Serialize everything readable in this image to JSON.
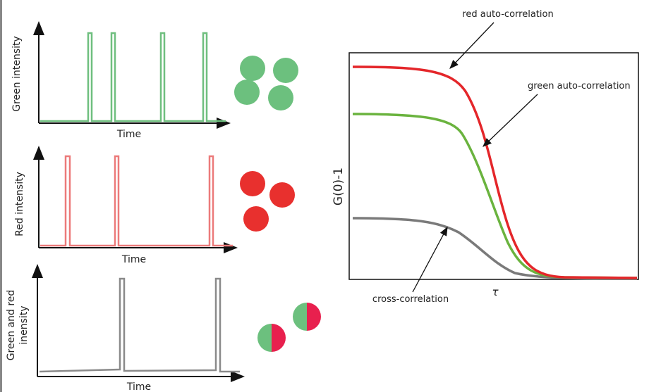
{
  "panels": [
    {
      "y_label": "Green intensity",
      "x_label": "Time"
    },
    {
      "y_label": "Red intensity",
      "x_label": "Time"
    },
    {
      "y_label_lines": [
        "Green and red",
        "inensity"
      ],
      "x_label": "Time"
    }
  ],
  "correlation": {
    "y_label": "G(0)-1",
    "x_label": "τ",
    "annotations": [
      "red auto-correlation",
      "green auto-correlation",
      "cross-correlation"
    ]
  }
}
